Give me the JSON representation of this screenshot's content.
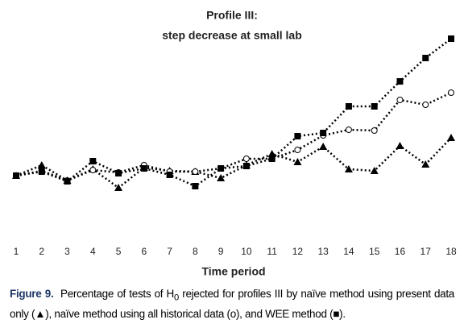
{
  "chart_data": {
    "type": "line",
    "title": [
      "Profile III:",
      "step decrease at small lab"
    ],
    "xlabel": "Time period",
    "categories": [
      "1",
      "2",
      "3",
      "4",
      "5",
      "6",
      "7",
      "8",
      "9",
      "10",
      "11",
      "12",
      "13",
      "14",
      "15",
      "16",
      "17",
      "18"
    ],
    "series": [
      {
        "name": "naïve method using present data only",
        "marker": "triangle",
        "color": "#000000",
        "values": [
          82,
          95,
          76,
          90,
          67,
          92,
          88,
          87,
          79,
          95,
          109,
          99,
          118,
          90,
          88,
          119,
          96,
          129
        ]
      },
      {
        "name": "naïve method using all historical data",
        "marker": "circle",
        "color": "#000000",
        "values": [
          82,
          88,
          76,
          89,
          86,
          95,
          87,
          87,
          91,
          103,
          103,
          114,
          132,
          139,
          138,
          176,
          170,
          185
        ]
      },
      {
        "name": "WEE method",
        "marker": "square",
        "color": "#000000",
        "values": [
          82,
          87,
          75,
          100,
          85,
          91,
          83,
          69,
          91,
          94,
          103,
          131,
          135,
          168,
          168,
          199,
          228,
          252
        ]
      }
    ]
  },
  "caption": {
    "label": "Figure 9.",
    "text_before": "Percentage of tests of H",
    "subscript": "0",
    "text_after": "rejected for profiles III by naïve method using present data only (▲), naïve method using all historical data (o), and WEE method (■)."
  }
}
